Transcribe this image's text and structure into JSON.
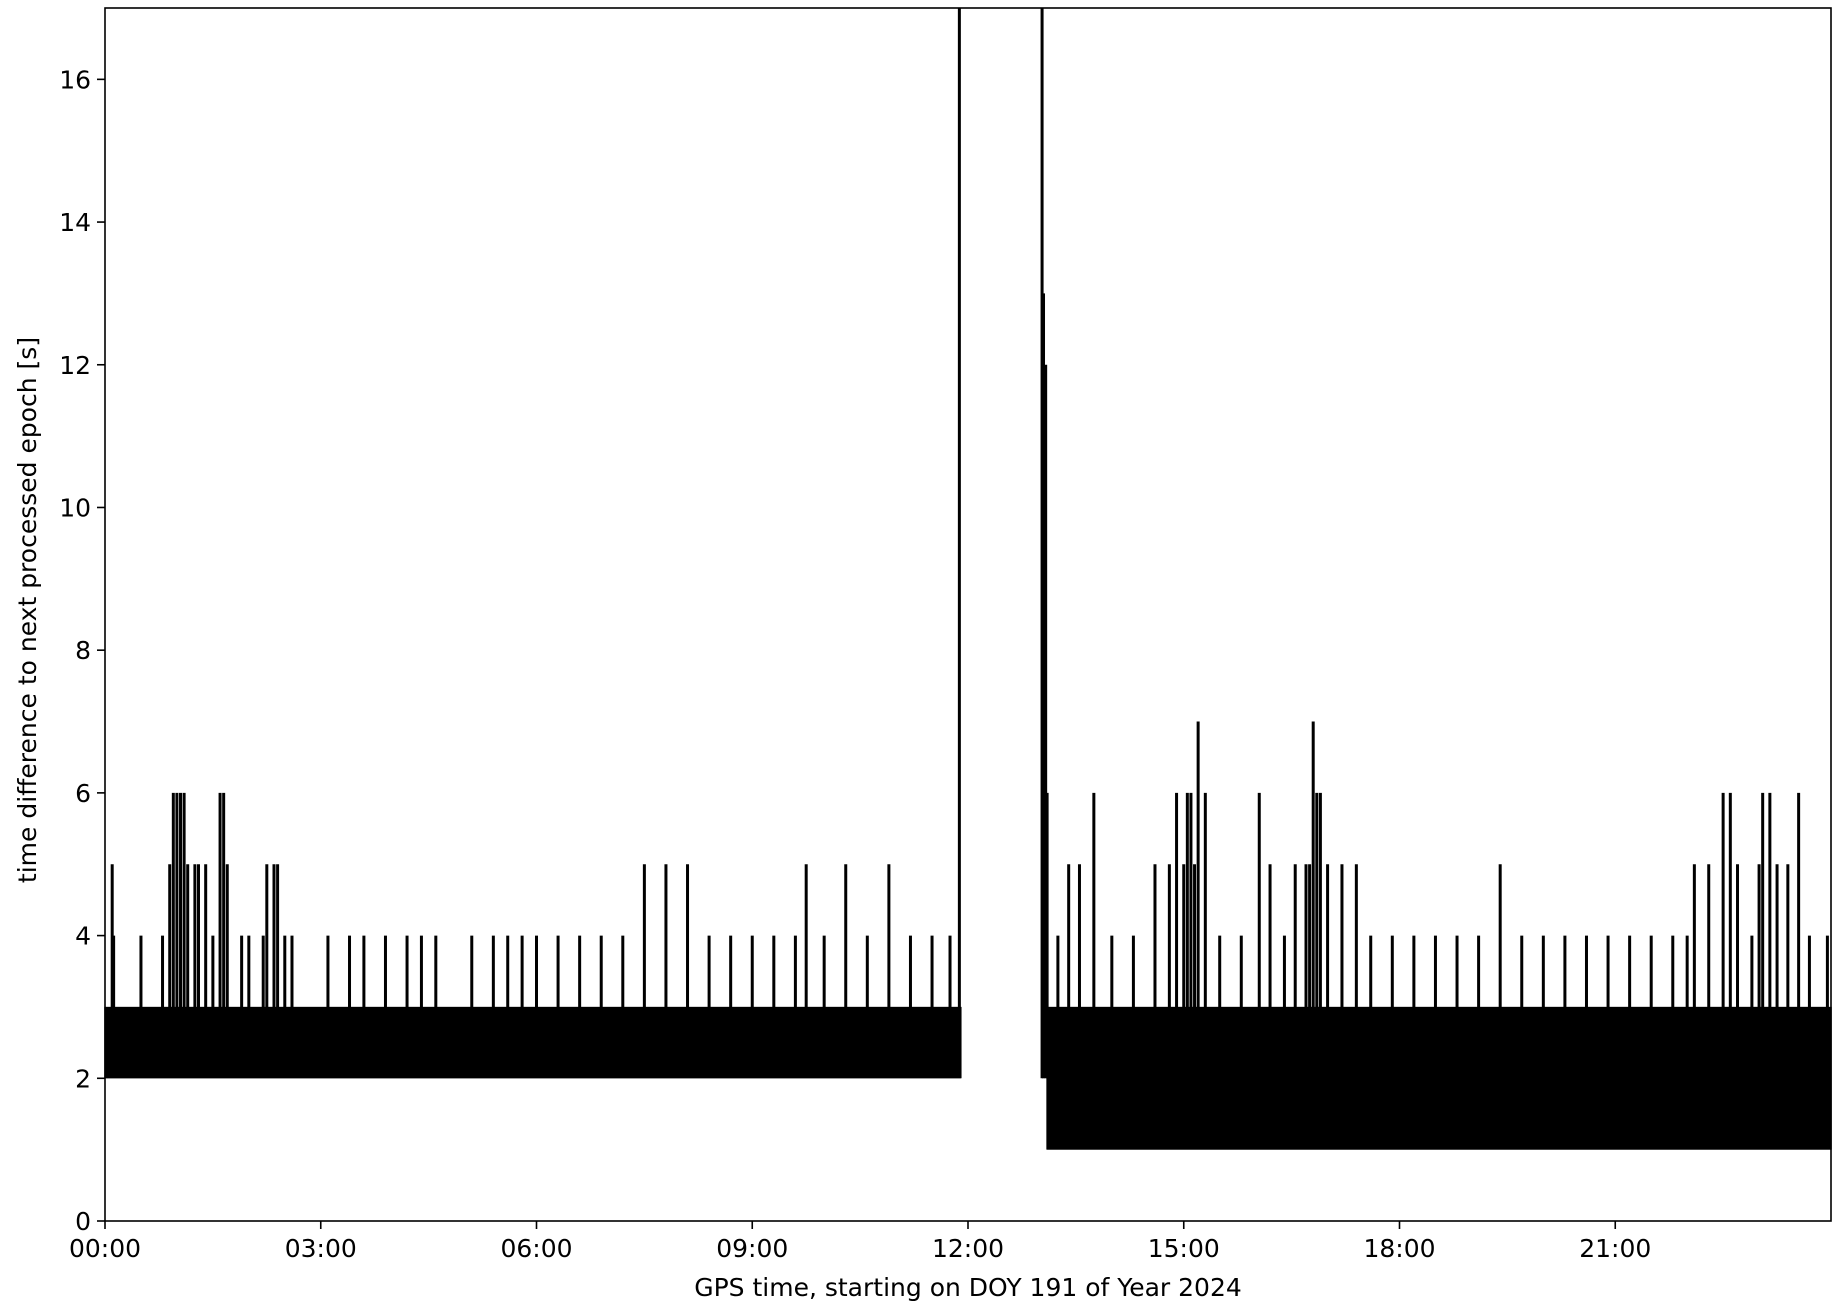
{
  "chart_data": {
    "type": "line",
    "title": "",
    "xlabel": "GPS time, starting on DOY 191 of Year 2024",
    "ylabel": "time difference to next processed epoch [s]",
    "x_unit": "hours",
    "xlim": [
      0,
      24
    ],
    "ylim": [
      0,
      17
    ],
    "x_ticks": [
      0,
      3,
      6,
      9,
      12,
      15,
      18,
      21
    ],
    "x_tick_labels": [
      "00:00",
      "03:00",
      "06:00",
      "09:00",
      "12:00",
      "15:00",
      "18:00",
      "21:00"
    ],
    "y_ticks": [
      0,
      2,
      4,
      6,
      8,
      10,
      12,
      14,
      16
    ],
    "y_tick_labels": [
      "0",
      "2",
      "4",
      "6",
      "8",
      "10",
      "12",
      "14",
      "16"
    ],
    "grid": false,
    "legend": false,
    "line_color": "#000000",
    "series": [
      {
        "description_of_pattern": "dense oscillation between 2 and 3 s in first segment, 1 and 3 s in second segment, with occasional spikes",
        "baseline_segments": [
          {
            "x_start": 0.0,
            "x_end": 11.9,
            "y_low": 2,
            "y_high": 3
          },
          {
            "x_start": 13.1,
            "x_end": 24.0,
            "y_low": 1,
            "y_high": 3
          }
        ],
        "gap_spikes": [
          {
            "x": 11.88,
            "y": 17
          },
          {
            "x": 13.03,
            "y": 17
          },
          {
            "x": 13.05,
            "y": 13
          },
          {
            "x": 13.08,
            "y": 12
          },
          {
            "x": 13.1,
            "y": 6
          }
        ],
        "spikes": [
          {
            "x": 0.1,
            "y": 5
          },
          {
            "x": 0.12,
            "y": 4
          },
          {
            "x": 0.5,
            "y": 4
          },
          {
            "x": 0.8,
            "y": 4
          },
          {
            "x": 0.9,
            "y": 5
          },
          {
            "x": 0.95,
            "y": 6
          },
          {
            "x": 1.0,
            "y": 6
          },
          {
            "x": 1.05,
            "y": 6
          },
          {
            "x": 1.1,
            "y": 6
          },
          {
            "x": 1.15,
            "y": 5
          },
          {
            "x": 1.25,
            "y": 5
          },
          {
            "x": 1.3,
            "y": 5
          },
          {
            "x": 1.4,
            "y": 5
          },
          {
            "x": 1.5,
            "y": 4
          },
          {
            "x": 1.6,
            "y": 6
          },
          {
            "x": 1.65,
            "y": 6
          },
          {
            "x": 1.7,
            "y": 5
          },
          {
            "x": 1.9,
            "y": 4
          },
          {
            "x": 2.0,
            "y": 4
          },
          {
            "x": 2.2,
            "y": 4
          },
          {
            "x": 2.25,
            "y": 5
          },
          {
            "x": 2.35,
            "y": 5
          },
          {
            "x": 2.4,
            "y": 5
          },
          {
            "x": 2.5,
            "y": 4
          },
          {
            "x": 2.6,
            "y": 4
          },
          {
            "x": 3.1,
            "y": 4
          },
          {
            "x": 3.4,
            "y": 4
          },
          {
            "x": 3.6,
            "y": 4
          },
          {
            "x": 3.9,
            "y": 4
          },
          {
            "x": 4.2,
            "y": 4
          },
          {
            "x": 4.4,
            "y": 4
          },
          {
            "x": 4.6,
            "y": 4
          },
          {
            "x": 5.1,
            "y": 4
          },
          {
            "x": 5.4,
            "y": 4
          },
          {
            "x": 5.6,
            "y": 4
          },
          {
            "x": 5.8,
            "y": 4
          },
          {
            "x": 6.0,
            "y": 4
          },
          {
            "x": 6.3,
            "y": 4
          },
          {
            "x": 6.6,
            "y": 4
          },
          {
            "x": 6.9,
            "y": 4
          },
          {
            "x": 7.2,
            "y": 4
          },
          {
            "x": 7.5,
            "y": 5
          },
          {
            "x": 7.8,
            "y": 5
          },
          {
            "x": 8.1,
            "y": 5
          },
          {
            "x": 8.4,
            "y": 4
          },
          {
            "x": 8.7,
            "y": 4
          },
          {
            "x": 9.0,
            "y": 4
          },
          {
            "x": 9.3,
            "y": 4
          },
          {
            "x": 9.6,
            "y": 4
          },
          {
            "x": 9.75,
            "y": 5
          },
          {
            "x": 10.0,
            "y": 4
          },
          {
            "x": 10.3,
            "y": 5
          },
          {
            "x": 10.6,
            "y": 4
          },
          {
            "x": 10.9,
            "y": 5
          },
          {
            "x": 11.2,
            "y": 4
          },
          {
            "x": 11.5,
            "y": 4
          },
          {
            "x": 11.75,
            "y": 4
          },
          {
            "x": 13.25,
            "y": 4
          },
          {
            "x": 13.4,
            "y": 5
          },
          {
            "x": 13.55,
            "y": 5
          },
          {
            "x": 13.75,
            "y": 6
          },
          {
            "x": 14.0,
            "y": 4
          },
          {
            "x": 14.3,
            "y": 4
          },
          {
            "x": 14.6,
            "y": 5
          },
          {
            "x": 14.8,
            "y": 5
          },
          {
            "x": 14.9,
            "y": 6
          },
          {
            "x": 15.0,
            "y": 5
          },
          {
            "x": 15.05,
            "y": 6
          },
          {
            "x": 15.1,
            "y": 6
          },
          {
            "x": 15.15,
            "y": 5
          },
          {
            "x": 15.2,
            "y": 7
          },
          {
            "x": 15.3,
            "y": 6
          },
          {
            "x": 15.5,
            "y": 4
          },
          {
            "x": 15.8,
            "y": 4
          },
          {
            "x": 16.05,
            "y": 6
          },
          {
            "x": 16.2,
            "y": 5
          },
          {
            "x": 16.4,
            "y": 4
          },
          {
            "x": 16.55,
            "y": 5
          },
          {
            "x": 16.7,
            "y": 5
          },
          {
            "x": 16.75,
            "y": 5
          },
          {
            "x": 16.8,
            "y": 7
          },
          {
            "x": 16.85,
            "y": 6
          },
          {
            "x": 16.9,
            "y": 6
          },
          {
            "x": 17.0,
            "y": 5
          },
          {
            "x": 17.2,
            "y": 5
          },
          {
            "x": 17.4,
            "y": 5
          },
          {
            "x": 17.6,
            "y": 4
          },
          {
            "x": 17.9,
            "y": 4
          },
          {
            "x": 18.2,
            "y": 4
          },
          {
            "x": 18.5,
            "y": 4
          },
          {
            "x": 18.8,
            "y": 4
          },
          {
            "x": 19.1,
            "y": 4
          },
          {
            "x": 19.4,
            "y": 5
          },
          {
            "x": 19.7,
            "y": 4
          },
          {
            "x": 20.0,
            "y": 4
          },
          {
            "x": 20.3,
            "y": 4
          },
          {
            "x": 20.6,
            "y": 4
          },
          {
            "x": 20.9,
            "y": 4
          },
          {
            "x": 21.2,
            "y": 4
          },
          {
            "x": 21.5,
            "y": 4
          },
          {
            "x": 21.8,
            "y": 4
          },
          {
            "x": 22.0,
            "y": 4
          },
          {
            "x": 22.1,
            "y": 5
          },
          {
            "x": 22.3,
            "y": 5
          },
          {
            "x": 22.5,
            "y": 6
          },
          {
            "x": 22.6,
            "y": 6
          },
          {
            "x": 22.7,
            "y": 5
          },
          {
            "x": 22.9,
            "y": 4
          },
          {
            "x": 23.0,
            "y": 5
          },
          {
            "x": 23.05,
            "y": 6
          },
          {
            "x": 23.15,
            "y": 6
          },
          {
            "x": 23.25,
            "y": 5
          },
          {
            "x": 23.4,
            "y": 5
          },
          {
            "x": 23.55,
            "y": 6
          },
          {
            "x": 23.7,
            "y": 4
          },
          {
            "x": 23.95,
            "y": 4
          }
        ]
      }
    ]
  }
}
